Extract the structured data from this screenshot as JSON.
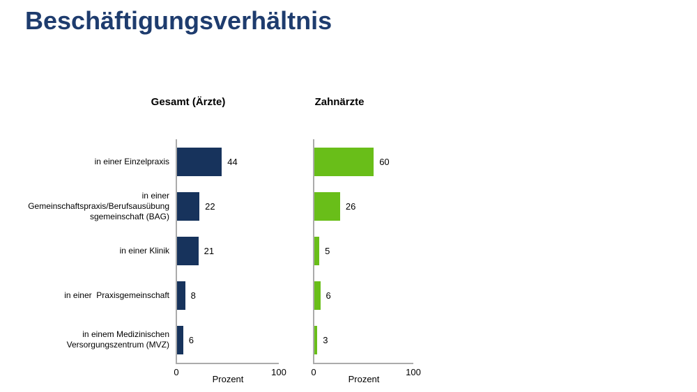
{
  "title": "Beschäftigungsverhältnis",
  "chart_data": {
    "type": "bar",
    "orientation": "horizontal",
    "title": "Beschäftigungsverhältnis",
    "categories": [
      "in einer Einzelpraxis",
      "in einer Gemeinschaftspraxis/Berufsausübung sgemeinschaft (BAG)",
      "in einer Klinik",
      "in einer  Praxisgemeinschaft",
      "in einem Medizinischen Versorgungszentrum (MVZ)"
    ],
    "category_lines": [
      [
        "in einer Einzelpraxis"
      ],
      [
        "in einer",
        "Gemeinschaftspraxis/Berufsausübung",
        "sgemeinschaft (BAG)"
      ],
      [
        "in einer Klinik"
      ],
      [
        "in einer  Praxisgemeinschaft"
      ],
      [
        "in einem Medizinischen",
        "Versorgungszentrum (MVZ)"
      ]
    ],
    "series": [
      {
        "name": "Gesamt (Ärzte)",
        "color": "#17335C",
        "values": [
          44,
          22,
          21,
          8,
          6
        ]
      },
      {
        "name": "Zahnärzte",
        "color": "#69BE19",
        "values": [
          60,
          26,
          5,
          6,
          3
        ]
      }
    ],
    "xlabel": "Prozent",
    "xlim": [
      0,
      100
    ],
    "x_ticks": [
      "0",
      "100"
    ],
    "grid": false,
    "value_labels": true,
    "legend": "none",
    "axis_color": "#ABABAB",
    "title_color": "#1E3C6E",
    "text_color": "#000000"
  }
}
